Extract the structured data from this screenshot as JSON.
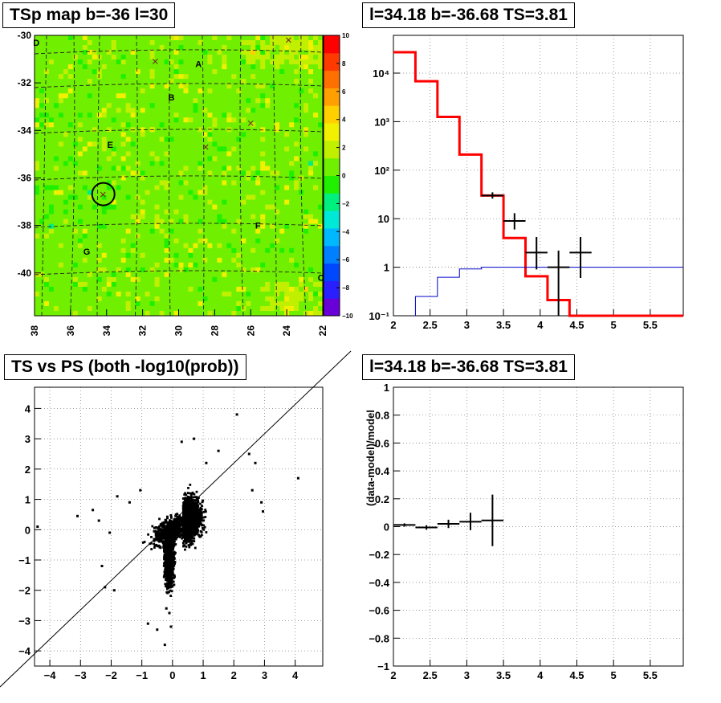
{
  "panels": {
    "tsmap_title": "TSp map b=-36 l=30",
    "spectrum_title": "l=34.18 b=-36.68 TS=3.81",
    "scatter_title": "TS vs PS (both -log10(prob))",
    "residual_title": "l=34.18 b=-36.68 TS=3.81"
  },
  "chart_data": [
    {
      "type": "heatmap",
      "title": "TSp map b=-36 l=30",
      "xlabel": "",
      "ylabel": "",
      "xlim": [
        38,
        22
      ],
      "ylim": [
        -41.8,
        -30
      ],
      "x_ticks": [
        "38",
        "36",
        "34",
        "32",
        "30",
        "28",
        "26",
        "24",
        "22"
      ],
      "y_ticks": [
        "-30",
        "-32",
        "-34",
        "-36",
        "-38",
        "-40"
      ],
      "colorbar": {
        "range": [
          -10,
          10
        ],
        "ticks": [
          "10",
          "8",
          "6",
          "4",
          "2",
          "0",
          "−2",
          "−4",
          "−6",
          "−8",
          "−10"
        ],
        "colors": [
          "#6a00d8",
          "#2a20ff",
          "#0048ff",
          "#0080ff",
          "#00b8ff",
          "#00e8d8",
          "#00f080",
          "#20f000",
          "#70f000",
          "#c0f000",
          "#f0f000",
          "#ffd000",
          "#ffa000",
          "#ff7000",
          "#ff3a00",
          "#ff0000"
        ]
      },
      "source_labels": [
        {
          "label": "A",
          "l": 28.9,
          "b": -31.2
        },
        {
          "label": "B",
          "l": 30.4,
          "b": -32.6
        },
        {
          "label": "D",
          "l": 37.9,
          "b": -30.3
        },
        {
          "label": "E",
          "l": 33.8,
          "b": -34.6
        },
        {
          "label": "F",
          "l": 25.6,
          "b": -38.0
        },
        {
          "label": "G",
          "l": 35.1,
          "b": -39.1
        },
        {
          "label": "C",
          "l": 22.1,
          "b": -40.2
        }
      ],
      "x_markers": [
        {
          "l": 31.3,
          "b": -31.1
        },
        {
          "l": 23.9,
          "b": -30.2
        },
        {
          "l": 26.0,
          "b": -33.7
        },
        {
          "l": 34.2,
          "b": -36.7
        },
        {
          "l": 28.5,
          "b": -34.7
        }
      ],
      "circle": {
        "l": 34.18,
        "b": -36.68,
        "label": "selected source"
      }
    },
    {
      "type": "line",
      "title": "l=34.18 b=-36.68 TS=3.81",
      "xlabel": "",
      "ylabel": "",
      "xlim": [
        2,
        5.95
      ],
      "ylim": [
        0.1,
        60000
      ],
      "log_y": true,
      "x_ticks": [
        "2",
        "2.5",
        "3",
        "3.5",
        "4",
        "4.5",
        "5",
        "5.5"
      ],
      "y_ticks": [
        {
          "value": 0.1,
          "label": "10⁻¹"
        },
        {
          "value": 1,
          "label": "1"
        },
        {
          "value": 10,
          "label": "10"
        },
        {
          "value": 100,
          "label": "10²"
        },
        {
          "value": 1000,
          "label": "10³"
        },
        {
          "value": 10000,
          "label": "10⁴"
        }
      ],
      "grid": true,
      "series": [
        {
          "style": "step",
          "color": "#ff0000",
          "width": 3,
          "edges": [
            2.0,
            2.3,
            2.6,
            2.9,
            3.2,
            3.5,
            3.8,
            4.1,
            4.4,
            5.95
          ],
          "values": [
            27000,
            6800,
            1250,
            210,
            30,
            4,
            0.65,
            0.21,
            0.1
          ]
        },
        {
          "style": "step",
          "color": "#0000cc",
          "width": 1,
          "edges": [
            2.3,
            2.6,
            2.9,
            3.2,
            5.95
          ],
          "values": [
            0.25,
            0.62,
            0.92,
            1.0
          ]
        },
        {
          "style": "errorbars",
          "color": "#000000",
          "points": [
            {
              "x": 3.35,
              "y": 30,
              "xerr": 0.15,
              "ylo": 26,
              "yhi": 35
            },
            {
              "x": 3.65,
              "y": 9,
              "xerr": 0.15,
              "ylo": 6,
              "yhi": 13
            },
            {
              "x": 3.95,
              "y": 2,
              "xerr": 0.15,
              "ylo": 0.9,
              "yhi": 4.2
            },
            {
              "x": 4.25,
              "y": 1,
              "xerr": 0.15,
              "ylo": 0.1,
              "yhi": 2.2
            },
            {
              "x": 4.55,
              "y": 2,
              "xerr": 0.15,
              "ylo": 0.6,
              "yhi": 4.2
            }
          ]
        }
      ]
    },
    {
      "type": "scatter",
      "title": "TS vs PS (both -log10(prob))",
      "xlabel": "",
      "ylabel": "",
      "xlim": [
        -4.5,
        4.9
      ],
      "ylim": [
        -4.5,
        4.7
      ],
      "x_ticks": [
        "−4",
        "−3",
        "−2",
        "−1",
        "0",
        "1",
        "2",
        "3",
        "4"
      ],
      "y_ticks": [
        "−4",
        "−3",
        "−2",
        "−1",
        "0",
        "1",
        "2",
        "3",
        "4"
      ],
      "grid": true,
      "diagonal": true,
      "highlight_points": [
        {
          "x": -4.4,
          "y": 0.1
        },
        {
          "x": -3.1,
          "y": 0.45
        },
        {
          "x": -2.6,
          "y": 0.65
        },
        {
          "x": -2.4,
          "y": 0.3
        },
        {
          "x": -2.3,
          "y": -1.2
        },
        {
          "x": -2.05,
          "y": -0.1
        },
        {
          "x": -1.8,
          "y": 1.1
        },
        {
          "x": -1.9,
          "y": -2.0
        },
        {
          "x": -2.2,
          "y": -1.9
        },
        {
          "x": -1.4,
          "y": 0.9
        },
        {
          "x": -1.05,
          "y": 1.3
        },
        {
          "x": -0.8,
          "y": -3.1
        },
        {
          "x": -0.5,
          "y": -3.3
        },
        {
          "x": -0.25,
          "y": -3.8
        },
        {
          "x": 0.3,
          "y": 2.9
        },
        {
          "x": 0.7,
          "y": 3.0
        },
        {
          "x": 1.1,
          "y": 2.2
        },
        {
          "x": 1.5,
          "y": 2.6
        },
        {
          "x": 2.1,
          "y": 3.8
        },
        {
          "x": 2.5,
          "y": 2.5
        },
        {
          "x": 2.6,
          "y": 1.3
        },
        {
          "x": 2.7,
          "y": 2.2
        },
        {
          "x": 2.9,
          "y": 0.9
        },
        {
          "x": 2.95,
          "y": 0.6
        },
        {
          "x": 4.1,
          "y": 1.7
        },
        {
          "x": -0.05,
          "y": -3.2
        },
        {
          "x": -0.2,
          "y": -2.6
        },
        {
          "x": -0.1,
          "y": -2.75
        }
      ],
      "cloud_note": "dense cloud centered near (0,0), elongated along positive x and negative y"
    },
    {
      "type": "line",
      "title": "l=34.18 b=-36.68 TS=3.81",
      "xlabel": "",
      "ylabel": "(data-model)/model",
      "xlim": [
        2,
        5.95
      ],
      "ylim": [
        -1,
        1
      ],
      "x_ticks": [
        "2",
        "2.5",
        "3",
        "3.5",
        "4",
        "4.5",
        "5",
        "5.5"
      ],
      "y_ticks": [
        "−1",
        "−0.8",
        "−0.6",
        "−0.4",
        "−0.2",
        "0",
        "0.2",
        "0.4",
        "0.6",
        "0.8",
        "1"
      ],
      "grid": true,
      "series": [
        {
          "style": "errorbars",
          "color": "#000000",
          "points": [
            {
              "x": 2.15,
              "y": 0.012,
              "xerr": 0.15,
              "ylo": 0.0,
              "yhi": 0.024
            },
            {
              "x": 2.45,
              "y": -0.006,
              "xerr": 0.15,
              "ylo": -0.022,
              "yhi": 0.01
            },
            {
              "x": 2.75,
              "y": 0.02,
              "xerr": 0.15,
              "ylo": -0.01,
              "yhi": 0.05
            },
            {
              "x": 3.05,
              "y": 0.035,
              "xerr": 0.15,
              "ylo": -0.025,
              "yhi": 0.1
            },
            {
              "x": 3.35,
              "y": 0.045,
              "xerr": 0.15,
              "ylo": -0.14,
              "yhi": 0.23
            }
          ]
        }
      ]
    }
  ]
}
